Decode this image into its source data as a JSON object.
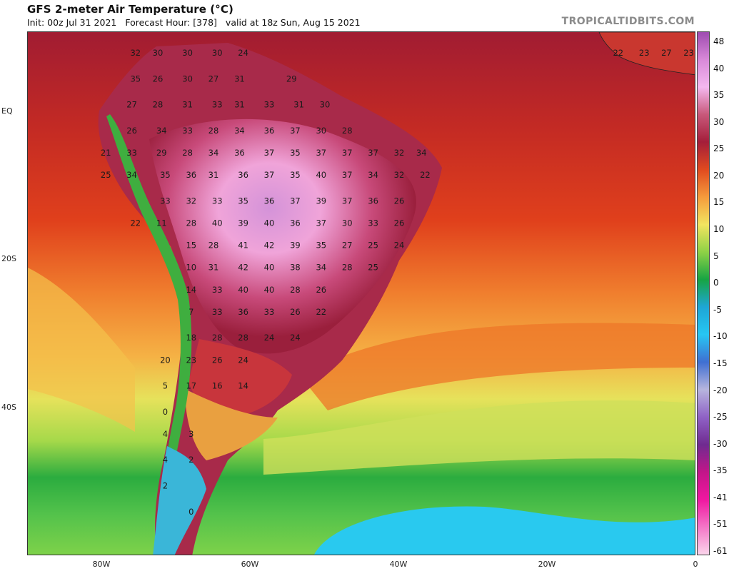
{
  "header": {
    "title": "GFS 2-meter Air Temperature (°C)",
    "init": "Init: 00z Jul 31 2021",
    "forecast_hour": "Forecast Hour: [378]",
    "valid": "valid at 18z Sun, Aug 15 2021",
    "brand": "TROPICALTIDBITS.COM"
  },
  "axes": {
    "lat_labels": [
      "EQ",
      "20S",
      "40S"
    ],
    "lon_labels": [
      "80W",
      "60W",
      "40W",
      "20W",
      "0"
    ]
  },
  "colorbar": {
    "labels": [
      "48",
      "40",
      "35",
      "30",
      "25",
      "20",
      "15",
      "10",
      "5",
      "0",
      "-5",
      "-10",
      "-15",
      "-20",
      "-25",
      "-30",
      "-35",
      "-41",
      "-51",
      "-61"
    ],
    "colors": [
      "#9e4bb0",
      "#d889d8",
      "#f4b8ef",
      "#c8587a",
      "#a41e3a",
      "#e04a1f",
      "#f59b3c",
      "#f2e460",
      "#8ed146",
      "#17a443",
      "#1ea6d6",
      "#27c6f3",
      "#3f6fd2",
      "#b7b5de",
      "#8f62c6",
      "#6f2b90",
      "#c21689",
      "#f017a0",
      "#f477c7",
      "#fbd5eb"
    ]
  },
  "temps": [
    {
      "lon": -75.5,
      "lat": 8,
      "v": "32"
    },
    {
      "lon": -72.5,
      "lat": 8,
      "v": "30"
    },
    {
      "lon": -68.5,
      "lat": 8,
      "v": "30"
    },
    {
      "lon": -64.5,
      "lat": 8,
      "v": "30"
    },
    {
      "lon": -61,
      "lat": 8,
      "v": "24"
    },
    {
      "lon": -75.5,
      "lat": 4.5,
      "v": "35"
    },
    {
      "lon": -72.5,
      "lat": 4.5,
      "v": "26"
    },
    {
      "lon": -68.5,
      "lat": 4.5,
      "v": "30"
    },
    {
      "lon": -65,
      "lat": 4.5,
      "v": "27"
    },
    {
      "lon": -61.5,
      "lat": 4.5,
      "v": "31"
    },
    {
      "lon": -54.5,
      "lat": 4.5,
      "v": "29"
    },
    {
      "lon": -76,
      "lat": 1,
      "v": "27"
    },
    {
      "lon": -72.5,
      "lat": 1,
      "v": "28"
    },
    {
      "lon": -68.5,
      "lat": 1,
      "v": "31"
    },
    {
      "lon": -64.5,
      "lat": 1,
      "v": "33"
    },
    {
      "lon": -61.5,
      "lat": 1,
      "v": "31"
    },
    {
      "lon": -57.5,
      "lat": 1,
      "v": "33"
    },
    {
      "lon": -53.5,
      "lat": 1,
      "v": "31"
    },
    {
      "lon": -50,
      "lat": 1,
      "v": "30"
    },
    {
      "lon": -76,
      "lat": -2.5,
      "v": "26"
    },
    {
      "lon": -72,
      "lat": -2.5,
      "v": "34"
    },
    {
      "lon": -68.5,
      "lat": -2.5,
      "v": "33"
    },
    {
      "lon": -65,
      "lat": -2.5,
      "v": "28"
    },
    {
      "lon": -61.5,
      "lat": -2.5,
      "v": "34"
    },
    {
      "lon": -57.5,
      "lat": -2.5,
      "v": "36"
    },
    {
      "lon": -54,
      "lat": -2.5,
      "v": "37"
    },
    {
      "lon": -50.5,
      "lat": -2.5,
      "v": "30"
    },
    {
      "lon": -47,
      "lat": -2.5,
      "v": "28"
    },
    {
      "lon": -79.5,
      "lat": -5.5,
      "v": "21"
    },
    {
      "lon": -76,
      "lat": -5.5,
      "v": "33"
    },
    {
      "lon": -72,
      "lat": -5.5,
      "v": "29"
    },
    {
      "lon": -68.5,
      "lat": -5.5,
      "v": "28"
    },
    {
      "lon": -65,
      "lat": -5.5,
      "v": "34"
    },
    {
      "lon": -61.5,
      "lat": -5.5,
      "v": "36"
    },
    {
      "lon": -57.5,
      "lat": -5.5,
      "v": "37"
    },
    {
      "lon": -54,
      "lat": -5.5,
      "v": "35"
    },
    {
      "lon": -50.5,
      "lat": -5.5,
      "v": "37"
    },
    {
      "lon": -47,
      "lat": -5.5,
      "v": "37"
    },
    {
      "lon": -43.5,
      "lat": -5.5,
      "v": "37"
    },
    {
      "lon": -40,
      "lat": -5.5,
      "v": "32"
    },
    {
      "lon": -37,
      "lat": -5.5,
      "v": "34"
    },
    {
      "lon": -79.5,
      "lat": -8.5,
      "v": "25"
    },
    {
      "lon": -76,
      "lat": -8.5,
      "v": "34"
    },
    {
      "lon": -71.5,
      "lat": -8.5,
      "v": "35"
    },
    {
      "lon": -68,
      "lat": -8.5,
      "v": "36"
    },
    {
      "lon": -65,
      "lat": -8.5,
      "v": "31"
    },
    {
      "lon": -61,
      "lat": -8.5,
      "v": "36"
    },
    {
      "lon": -57.5,
      "lat": -8.5,
      "v": "37"
    },
    {
      "lon": -54,
      "lat": -8.5,
      "v": "35"
    },
    {
      "lon": -50.5,
      "lat": -8.5,
      "v": "40"
    },
    {
      "lon": -47,
      "lat": -8.5,
      "v": "37"
    },
    {
      "lon": -43.5,
      "lat": -8.5,
      "v": "34"
    },
    {
      "lon": -40,
      "lat": -8.5,
      "v": "32"
    },
    {
      "lon": -36.5,
      "lat": -8.5,
      "v": "22"
    },
    {
      "lon": -71.5,
      "lat": -12,
      "v": "33"
    },
    {
      "lon": -68,
      "lat": -12,
      "v": "32"
    },
    {
      "lon": -64.5,
      "lat": -12,
      "v": "33"
    },
    {
      "lon": -61,
      "lat": -12,
      "v": "35"
    },
    {
      "lon": -57.5,
      "lat": -12,
      "v": "36"
    },
    {
      "lon": -54,
      "lat": -12,
      "v": "37"
    },
    {
      "lon": -50.5,
      "lat": -12,
      "v": "39"
    },
    {
      "lon": -47,
      "lat": -12,
      "v": "37"
    },
    {
      "lon": -43.5,
      "lat": -12,
      "v": "36"
    },
    {
      "lon": -40,
      "lat": -12,
      "v": "26"
    },
    {
      "lon": -75.5,
      "lat": -15,
      "v": "22"
    },
    {
      "lon": -72,
      "lat": -15,
      "v": "11"
    },
    {
      "lon": -68,
      "lat": -15,
      "v": "28"
    },
    {
      "lon": -64.5,
      "lat": -15,
      "v": "40"
    },
    {
      "lon": -61,
      "lat": -15,
      "v": "39"
    },
    {
      "lon": -57.5,
      "lat": -15,
      "v": "40"
    },
    {
      "lon": -54,
      "lat": -15,
      "v": "36"
    },
    {
      "lon": -50.5,
      "lat": -15,
      "v": "37"
    },
    {
      "lon": -47,
      "lat": -15,
      "v": "30"
    },
    {
      "lon": -43.5,
      "lat": -15,
      "v": "33"
    },
    {
      "lon": -40,
      "lat": -15,
      "v": "26"
    },
    {
      "lon": -68,
      "lat": -18,
      "v": "15"
    },
    {
      "lon": -65,
      "lat": -18,
      "v": "28"
    },
    {
      "lon": -61,
      "lat": -18,
      "v": "41"
    },
    {
      "lon": -57.5,
      "lat": -18,
      "v": "42"
    },
    {
      "lon": -54,
      "lat": -18,
      "v": "39"
    },
    {
      "lon": -50.5,
      "lat": -18,
      "v": "35"
    },
    {
      "lon": -47,
      "lat": -18,
      "v": "27"
    },
    {
      "lon": -43.5,
      "lat": -18,
      "v": "25"
    },
    {
      "lon": -40,
      "lat": -18,
      "v": "24"
    },
    {
      "lon": -68,
      "lat": -21,
      "v": "10"
    },
    {
      "lon": -65,
      "lat": -21,
      "v": "31"
    },
    {
      "lon": -61,
      "lat": -21,
      "v": "42"
    },
    {
      "lon": -57.5,
      "lat": -21,
      "v": "40"
    },
    {
      "lon": -54,
      "lat": -21,
      "v": "38"
    },
    {
      "lon": -50.5,
      "lat": -21,
      "v": "34"
    },
    {
      "lon": -47,
      "lat": -21,
      "v": "28"
    },
    {
      "lon": -43.5,
      "lat": -21,
      "v": "25"
    },
    {
      "lon": -68,
      "lat": -24,
      "v": "14"
    },
    {
      "lon": -64.5,
      "lat": -24,
      "v": "33"
    },
    {
      "lon": -61,
      "lat": -24,
      "v": "40"
    },
    {
      "lon": -57.5,
      "lat": -24,
      "v": "40"
    },
    {
      "lon": -54,
      "lat": -24,
      "v": "28"
    },
    {
      "lon": -50.5,
      "lat": -24,
      "v": "26"
    },
    {
      "lon": -68,
      "lat": -27,
      "v": "7"
    },
    {
      "lon": -64.5,
      "lat": -27,
      "v": "33"
    },
    {
      "lon": -61,
      "lat": -27,
      "v": "36"
    },
    {
      "lon": -57.5,
      "lat": -27,
      "v": "33"
    },
    {
      "lon": -54,
      "lat": -27,
      "v": "26"
    },
    {
      "lon": -50.5,
      "lat": -27,
      "v": "22"
    },
    {
      "lon": -68,
      "lat": -30.5,
      "v": "18"
    },
    {
      "lon": -64.5,
      "lat": -30.5,
      "v": "28"
    },
    {
      "lon": -61,
      "lat": -30.5,
      "v": "28"
    },
    {
      "lon": -57.5,
      "lat": -30.5,
      "v": "24"
    },
    {
      "lon": -54,
      "lat": -30.5,
      "v": "24"
    },
    {
      "lon": -71.5,
      "lat": -33.5,
      "v": "20"
    },
    {
      "lon": -68,
      "lat": -33.5,
      "v": "23"
    },
    {
      "lon": -64.5,
      "lat": -33.5,
      "v": "26"
    },
    {
      "lon": -61,
      "lat": -33.5,
      "v": "24"
    },
    {
      "lon": -71.5,
      "lat": -37,
      "v": "5"
    },
    {
      "lon": -68,
      "lat": -37,
      "v": "17"
    },
    {
      "lon": -64.5,
      "lat": -37,
      "v": "16"
    },
    {
      "lon": -61,
      "lat": -37,
      "v": "14"
    },
    {
      "lon": -71.5,
      "lat": -40.5,
      "v": "0"
    },
    {
      "lon": -71.5,
      "lat": -43.5,
      "v": "4"
    },
    {
      "lon": -68,
      "lat": -43.5,
      "v": "3"
    },
    {
      "lon": -71.5,
      "lat": -47,
      "v": "4"
    },
    {
      "lon": -68,
      "lat": -47,
      "v": "2"
    },
    {
      "lon": -71.5,
      "lat": -50.5,
      "v": "2"
    },
    {
      "lon": -68,
      "lat": -54,
      "v": "0"
    },
    {
      "lon": -10.5,
      "lat": 8,
      "v": "22"
    },
    {
      "lon": -7,
      "lat": 8,
      "v": "23"
    },
    {
      "lon": -4,
      "lat": 8,
      "v": "27"
    },
    {
      "lon": -1,
      "lat": 8,
      "v": "23"
    }
  ]
}
